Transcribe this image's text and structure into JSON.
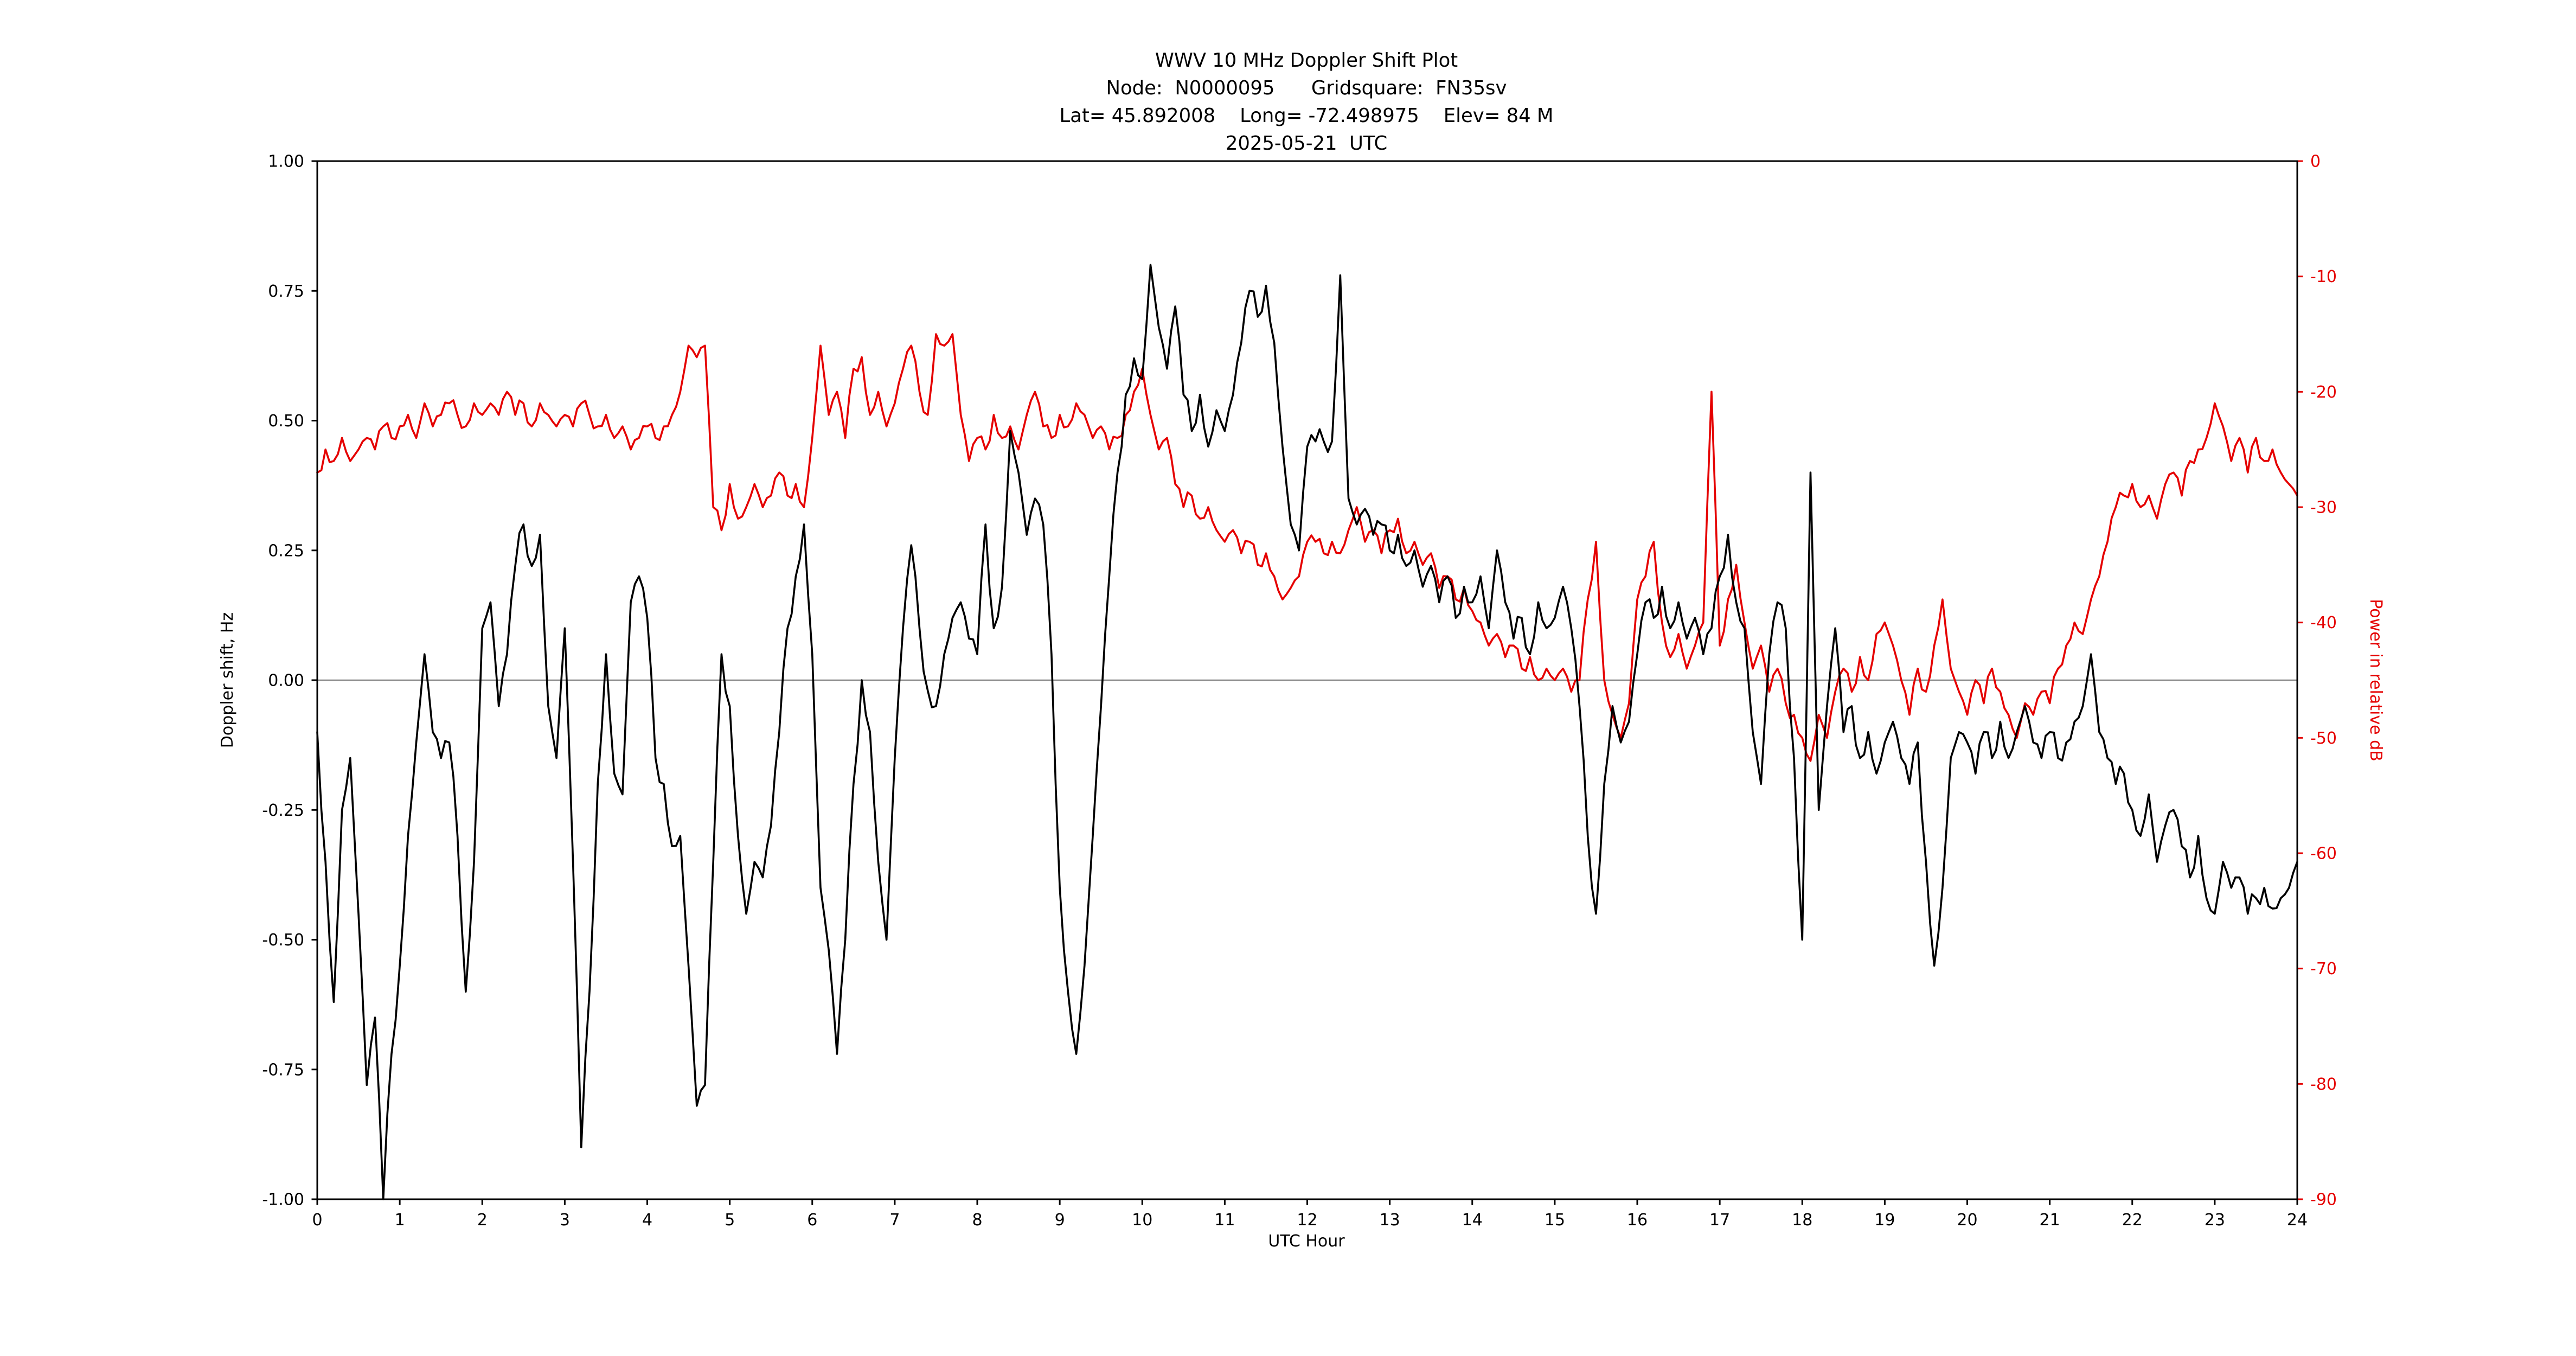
{
  "header": {
    "line1": "WWV 10 MHz Doppler Shift Plot",
    "line2": "Node:  N0000095      Gridsquare:  FN35sv",
    "line3": "Lat= 45.892008    Long= -72.498975    Elev= 84 M",
    "line4": "2025-05-21  UTC"
  },
  "colors": {
    "doppler_series": "#000000",
    "power_series": "#e50000",
    "zero_line": "#888888",
    "frame": "#000000"
  },
  "chart_data": {
    "type": "line",
    "title": "WWV 10 MHz Doppler Shift Plot",
    "subtitle_lines": [
      "Node:  N0000095      Gridsquare:  FN35sv",
      "Lat= 45.892008    Long= -72.498975    Elev= 84 M",
      "2025-05-21  UTC"
    ],
    "xlabel": "UTC Hour",
    "ylabel_left": "Doppler shift, Hz",
    "ylabel_right": "Power in relative dB",
    "x_min": 0,
    "x_max": 24,
    "x_ticks": [
      0,
      1,
      2,
      3,
      4,
      5,
      6,
      7,
      8,
      9,
      10,
      11,
      12,
      13,
      14,
      15,
      16,
      17,
      18,
      19,
      20,
      21,
      22,
      23,
      24
    ],
    "y_left_min": -1.0,
    "y_left_max": 1.0,
    "y_left_ticks": [
      1.0,
      0.75,
      0.5,
      0.25,
      0.0,
      -0.25,
      -0.5,
      -0.75,
      -1.0
    ],
    "y_left_tick_labels": [
      "1.00",
      "0.75",
      "0.50",
      "0.25",
      "0.00",
      "-0.25",
      "-0.50",
      "-0.75",
      "-1.00"
    ],
    "y_right_min": -90,
    "y_right_max": 0,
    "y_right_ticks": [
      0,
      -10,
      -20,
      -30,
      -40,
      -50,
      -60,
      -70,
      -80,
      -90
    ],
    "y_right_tick_labels": [
      "0",
      "-10",
      "-20",
      "-30",
      "-40",
      "-50",
      "-60",
      "-70",
      "-80",
      "-90"
    ],
    "grid": false,
    "zero_reference_line": 0,
    "series": [
      {
        "name": "Doppler shift",
        "axis": "left",
        "color": "#000000",
        "t0": 0,
        "dt": 0.1,
        "values": [
          -0.1,
          -0.35,
          -0.62,
          -0.25,
          -0.15,
          -0.45,
          -0.78,
          -0.65,
          -1.0,
          -0.72,
          -0.55,
          -0.3,
          -0.12,
          0.05,
          -0.1,
          -0.15,
          -0.12,
          -0.3,
          -0.6,
          -0.35,
          0.1,
          0.15,
          -0.05,
          0.05,
          0.22,
          0.3,
          0.22,
          0.28,
          -0.05,
          -0.15,
          0.1,
          -0.35,
          -0.9,
          -0.6,
          -0.2,
          0.05,
          -0.18,
          -0.22,
          0.15,
          0.2,
          0.12,
          -0.15,
          -0.2,
          -0.32,
          -0.3,
          -0.55,
          -0.82,
          -0.78,
          -0.35,
          0.05,
          -0.05,
          -0.3,
          -0.45,
          -0.35,
          -0.38,
          -0.28,
          -0.1,
          0.1,
          0.2,
          0.3,
          0.05,
          -0.4,
          -0.52,
          -0.72,
          -0.5,
          -0.2,
          0.0,
          -0.1,
          -0.35,
          -0.5,
          -0.15,
          0.1,
          0.26,
          0.1,
          -0.02,
          -0.05,
          0.05,
          0.12,
          0.15,
          0.08,
          0.05,
          0.3,
          0.1,
          0.18,
          0.48,
          0.4,
          0.28,
          0.35,
          0.3,
          0.05,
          -0.4,
          -0.6,
          -0.72,
          -0.55,
          -0.3,
          -0.05,
          0.2,
          0.4,
          0.55,
          0.62,
          0.58,
          0.8,
          0.68,
          0.6,
          0.72,
          0.55,
          0.48,
          0.55,
          0.45,
          0.52,
          0.48,
          0.55,
          0.65,
          0.75,
          0.7,
          0.76,
          0.65,
          0.45,
          0.3,
          0.25,
          0.45,
          0.46,
          0.46,
          0.46,
          0.78,
          0.35,
          0.3,
          0.33,
          0.28,
          0.3,
          0.25,
          0.28,
          0.22,
          0.25,
          0.18,
          0.22,
          0.15,
          0.2,
          0.12,
          0.18,
          0.15,
          0.2,
          0.1,
          0.25,
          0.15,
          0.08,
          0.12,
          0.05,
          0.15,
          0.1,
          0.12,
          0.18,
          0.1,
          -0.05,
          -0.3,
          -0.45,
          -0.2,
          -0.05,
          -0.12,
          -0.08,
          0.05,
          0.15,
          0.12,
          0.18,
          0.1,
          0.15,
          0.08,
          0.12,
          0.05,
          0.1,
          0.2,
          0.28,
          0.15,
          0.1,
          -0.1,
          -0.2,
          0.05,
          0.15,
          0.1,
          -0.15,
          -0.5,
          0.4,
          -0.25,
          -0.05,
          0.1,
          -0.1,
          -0.05,
          -0.15,
          -0.1,
          -0.18,
          -0.12,
          -0.08,
          -0.15,
          -0.2,
          -0.12,
          -0.35,
          -0.55,
          -0.4,
          -0.15,
          -0.1,
          -0.12,
          -0.18,
          -0.1,
          -0.15,
          -0.08,
          -0.15,
          -0.1,
          -0.05,
          -0.12,
          -0.15,
          -0.1,
          -0.15,
          -0.12,
          -0.08,
          -0.05,
          0.05,
          -0.1,
          -0.15,
          -0.2,
          -0.18,
          -0.25,
          -0.3,
          -0.22,
          -0.35,
          -0.28,
          -0.25,
          -0.32,
          -0.38,
          -0.3,
          -0.42,
          -0.45,
          -0.35,
          -0.4,
          -0.38,
          -0.45,
          -0.42,
          -0.4,
          -0.44,
          -0.42,
          -0.4,
          -0.35
        ]
      },
      {
        "name": "Power in relative dB",
        "axis": "right",
        "color": "#e50000",
        "t0": 0,
        "dt": 0.1,
        "values": [
          -27,
          -25,
          -26,
          -24,
          -26,
          -25,
          -24,
          -25,
          -23,
          -24,
          -23,
          -22,
          -24,
          -21,
          -23,
          -22,
          -21,
          -22,
          -23,
          -21,
          -22,
          -21,
          -22,
          -20,
          -22,
          -21,
          -23,
          -21,
          -22,
          -23,
          -22,
          -23,
          -21,
          -22,
          -23,
          -22,
          -24,
          -23,
          -25,
          -24,
          -23,
          -24,
          -23,
          -22,
          -20,
          -16,
          -17,
          -16,
          -30,
          -32,
          -28,
          -31,
          -30,
          -28,
          -30,
          -29,
          -27,
          -29,
          -28,
          -30,
          -24,
          -16,
          -22,
          -20,
          -24,
          -18,
          -17,
          -22,
          -20,
          -23,
          -21,
          -18,
          -16,
          -20,
          -22,
          -15,
          -16,
          -15,
          -22,
          -26,
          -24,
          -25,
          -22,
          -24,
          -23,
          -25,
          -22,
          -20,
          -23,
          -24,
          -22,
          -23,
          -21,
          -22,
          -24,
          -23,
          -25,
          -24,
          -22,
          -20,
          -18,
          -22,
          -25,
          -24,
          -28,
          -30,
          -29,
          -31,
          -30,
          -32,
          -33,
          -32,
          -34,
          -33,
          -35,
          -34,
          -36,
          -38,
          -37,
          -36,
          -33,
          -33,
          -34,
          -33,
          -34,
          -32,
          -30,
          -33,
          -32,
          -34,
          -32,
          -31,
          -34,
          -33,
          -35,
          -34,
          -37,
          -36,
          -38,
          -37,
          -39,
          -40,
          -42,
          -41,
          -43,
          -42,
          -44,
          -43,
          -45,
          -44,
          -45,
          -44,
          -46,
          -45,
          -38,
          -33,
          -45,
          -48,
          -50,
          -47,
          -38,
          -36,
          -33,
          -40,
          -43,
          -41,
          -44,
          -42,
          -40,
          -20,
          -42,
          -38,
          -35,
          -40,
          -44,
          -42,
          -46,
          -44,
          -47,
          -48,
          -50,
          -52,
          -48,
          -50,
          -46,
          -44,
          -46,
          -43,
          -45,
          -41,
          -40,
          -42,
          -45,
          -48,
          -44,
          -46,
          -42,
          -38,
          -44,
          -46,
          -48,
          -45,
          -47,
          -44,
          -46,
          -48,
          -50,
          -47,
          -48,
          -46,
          -47,
          -44,
          -42,
          -40,
          -41,
          -38,
          -36,
          -33,
          -30,
          -29,
          -28,
          -30,
          -29,
          -31,
          -28,
          -27,
          -29,
          -26,
          -25,
          -24,
          -21,
          -23,
          -26,
          -24,
          -27,
          -24,
          -26,
          -25,
          -27,
          -28,
          -29
        ]
      }
    ]
  }
}
